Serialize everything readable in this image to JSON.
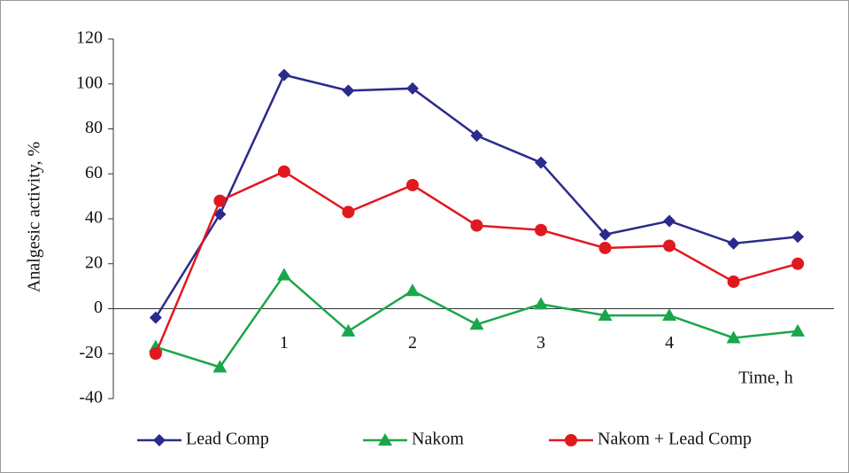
{
  "chart_data": {
    "type": "line",
    "ylabel": "Analgesic activity, %",
    "xlabel": "Time, h",
    "x": [
      0,
      0.5,
      1,
      1.5,
      2,
      2.5,
      3,
      3.5,
      4,
      4.5,
      5
    ],
    "xlim": [
      -0.33,
      5.33
    ],
    "xticks": [
      1,
      2,
      3,
      4
    ],
    "ylim": [
      -40,
      120
    ],
    "yticks": [
      -40,
      -20,
      0,
      20,
      40,
      60,
      80,
      100,
      120
    ],
    "legend": "bottom",
    "series": [
      {
        "name": "Lead Comp",
        "color": "#2b2b8c",
        "marker": "diamond",
        "values": [
          -4,
          42,
          104,
          97,
          98,
          77,
          65,
          33,
          39,
          29,
          32
        ]
      },
      {
        "name": "Nakom",
        "color": "#1aa64a",
        "marker": "triangle",
        "values": [
          -17,
          -26,
          15,
          -10,
          8,
          -7,
          2,
          -3,
          -3,
          -13,
          -10
        ]
      },
      {
        "name": "Nakom + Lead Comp",
        "color": "#e0191e",
        "marker": "circle",
        "values": [
          -20,
          48,
          61,
          43,
          55,
          37,
          35,
          27,
          28,
          12,
          20
        ]
      }
    ]
  }
}
